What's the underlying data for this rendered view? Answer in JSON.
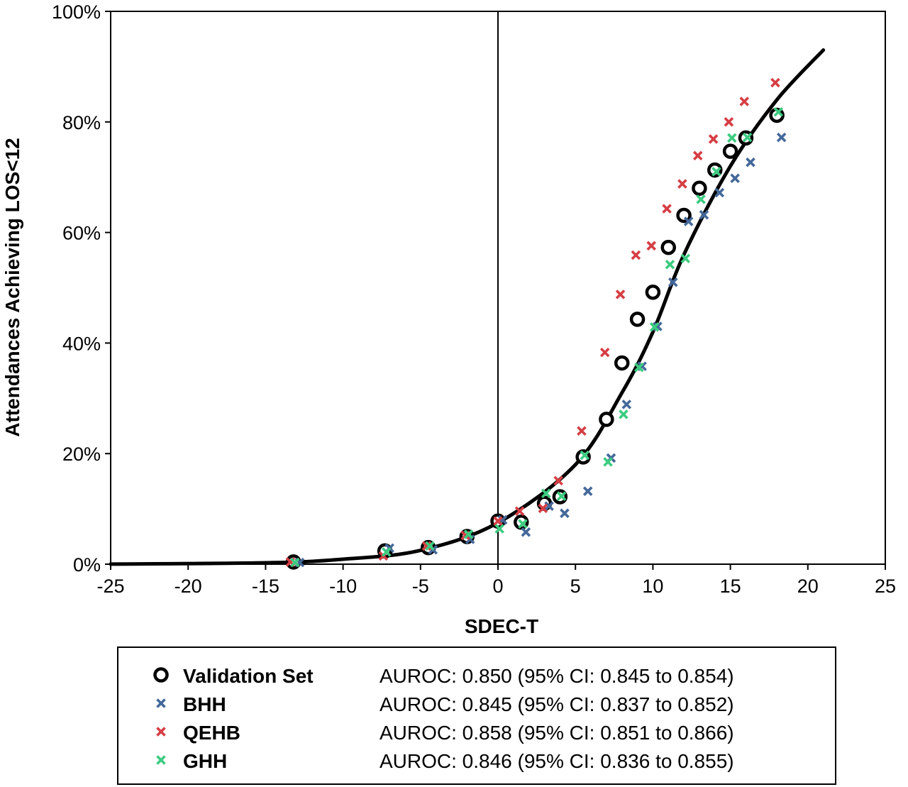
{
  "chart_data": {
    "type": "scatter",
    "xlabel": "SDEC-T",
    "ylabel": "Attendances Achieving LOS<12",
    "xlim": [
      -25,
      25
    ],
    "ylim": [
      0,
      100
    ],
    "x_ticks": [
      -25,
      -20,
      -15,
      -10,
      -5,
      0,
      5,
      10,
      15,
      20,
      25
    ],
    "y_ticks": [
      0,
      20,
      40,
      60,
      80,
      100
    ],
    "y_tick_labels": [
      "0%",
      "20%",
      "40%",
      "60%",
      "80%",
      "100%"
    ],
    "x_tick_labels": [
      "-25",
      "-20",
      "-15",
      "-10",
      "-5",
      "0",
      "5",
      "10",
      "15",
      "20",
      "25"
    ],
    "grid": false,
    "vertical_reference_line_x": 0,
    "curve": {
      "type": "logistic",
      "x_range": [
        -25,
        21
      ],
      "points": [
        [
          -25,
          0.02
        ],
        [
          -15,
          0.25
        ],
        [
          -10,
          0.9
        ],
        [
          -5,
          2.5
        ],
        [
          0,
          7.5
        ],
        [
          5,
          18
        ],
        [
          8,
          31
        ],
        [
          10,
          42
        ],
        [
          12,
          56
        ],
        [
          15,
          72
        ],
        [
          18,
          84
        ],
        [
          21,
          93
        ]
      ]
    },
    "legend_placement": "bottom",
    "series": [
      {
        "name": "Validation Set",
        "marker": "circle",
        "color": "#000000",
        "stat": "AUROC: 0.850 (95% CI: 0.845 to 0.854)",
        "points": [
          [
            -13.2,
            0.4
          ],
          [
            -7.3,
            2.4
          ],
          [
            -4.5,
            3.0
          ],
          [
            -2.0,
            5.0
          ],
          [
            0,
            7.8
          ],
          [
            1.5,
            7.6
          ],
          [
            3.0,
            11.0
          ],
          [
            4.0,
            12.2
          ],
          [
            5.5,
            19.4
          ],
          [
            7.0,
            26.2
          ],
          [
            8.0,
            36.4
          ],
          [
            9.0,
            44.3
          ],
          [
            10.0,
            49.2
          ],
          [
            11.0,
            57.3
          ],
          [
            12.0,
            63.1
          ],
          [
            13.0,
            68.0
          ],
          [
            14.0,
            71.3
          ],
          [
            15.0,
            74.7
          ],
          [
            16.0,
            77.1
          ],
          [
            18.0,
            81.2
          ]
        ]
      },
      {
        "name": "BHH",
        "marker": "x",
        "color": "#44689a",
        "stat": "AUROC: 0.845 (95% CI: 0.837 to 0.852)",
        "points": [
          [
            -12.8,
            0.3
          ],
          [
            -7.0,
            2.9
          ],
          [
            -4.2,
            2.6
          ],
          [
            -1.8,
            4.5
          ],
          [
            0.3,
            8.0
          ],
          [
            1.8,
            5.8
          ],
          [
            3.3,
            10.5
          ],
          [
            4.3,
            9.2
          ],
          [
            5.8,
            13.2
          ],
          [
            7.3,
            19.2
          ],
          [
            8.3,
            28.9
          ],
          [
            9.3,
            35.8
          ],
          [
            10.3,
            43.0
          ],
          [
            11.3,
            51.0
          ],
          [
            12.3,
            62.0
          ],
          [
            13.3,
            63.2
          ],
          [
            14.3,
            67.2
          ],
          [
            15.3,
            69.8
          ],
          [
            16.3,
            72.7
          ],
          [
            18.3,
            77.2
          ]
        ]
      },
      {
        "name": "QEHB",
        "marker": "x",
        "color": "#d63e44",
        "stat": "AUROC: 0.858 (95% CI: 0.851 to 0.866)",
        "points": [
          [
            -13.4,
            0.4
          ],
          [
            -7.4,
            1.5
          ],
          [
            -4.6,
            3.3
          ],
          [
            -2.1,
            5.2
          ],
          [
            0,
            7.8
          ],
          [
            1.4,
            9.6
          ],
          [
            2.9,
            10.1
          ],
          [
            3.9,
            15.1
          ],
          [
            5.4,
            24.1
          ],
          [
            6.9,
            38.3
          ],
          [
            7.9,
            48.8
          ],
          [
            8.9,
            55.9
          ],
          [
            9.9,
            57.6
          ],
          [
            10.9,
            64.3
          ],
          [
            11.9,
            68.8
          ],
          [
            12.9,
            73.9
          ],
          [
            13.9,
            76.9
          ],
          [
            14.9,
            80.0
          ],
          [
            15.9,
            83.7
          ],
          [
            17.9,
            87.1
          ]
        ]
      },
      {
        "name": "GHH",
        "marker": "x",
        "color": "#3ccc80",
        "stat": "AUROC: 0.846 (95% CI: 0.836 to 0.855)",
        "points": [
          [
            -13.1,
            0.3
          ],
          [
            -7.2,
            2.2
          ],
          [
            -4.4,
            3.3
          ],
          [
            -1.9,
            5.4
          ],
          [
            0.1,
            6.4
          ],
          [
            1.6,
            7.3
          ],
          [
            3.1,
            12.8
          ],
          [
            4.1,
            12.3
          ],
          [
            5.6,
            19.7
          ],
          [
            7.1,
            18.5
          ],
          [
            8.1,
            27.1
          ],
          [
            9.1,
            35.6
          ],
          [
            10.1,
            42.9
          ],
          [
            11.1,
            54.2
          ],
          [
            12.1,
            55.3
          ],
          [
            13.1,
            66.0
          ],
          [
            14.1,
            71.0
          ],
          [
            15.1,
            77.1
          ],
          [
            16.1,
            77.2
          ],
          [
            18.1,
            81.8
          ]
        ]
      }
    ]
  }
}
